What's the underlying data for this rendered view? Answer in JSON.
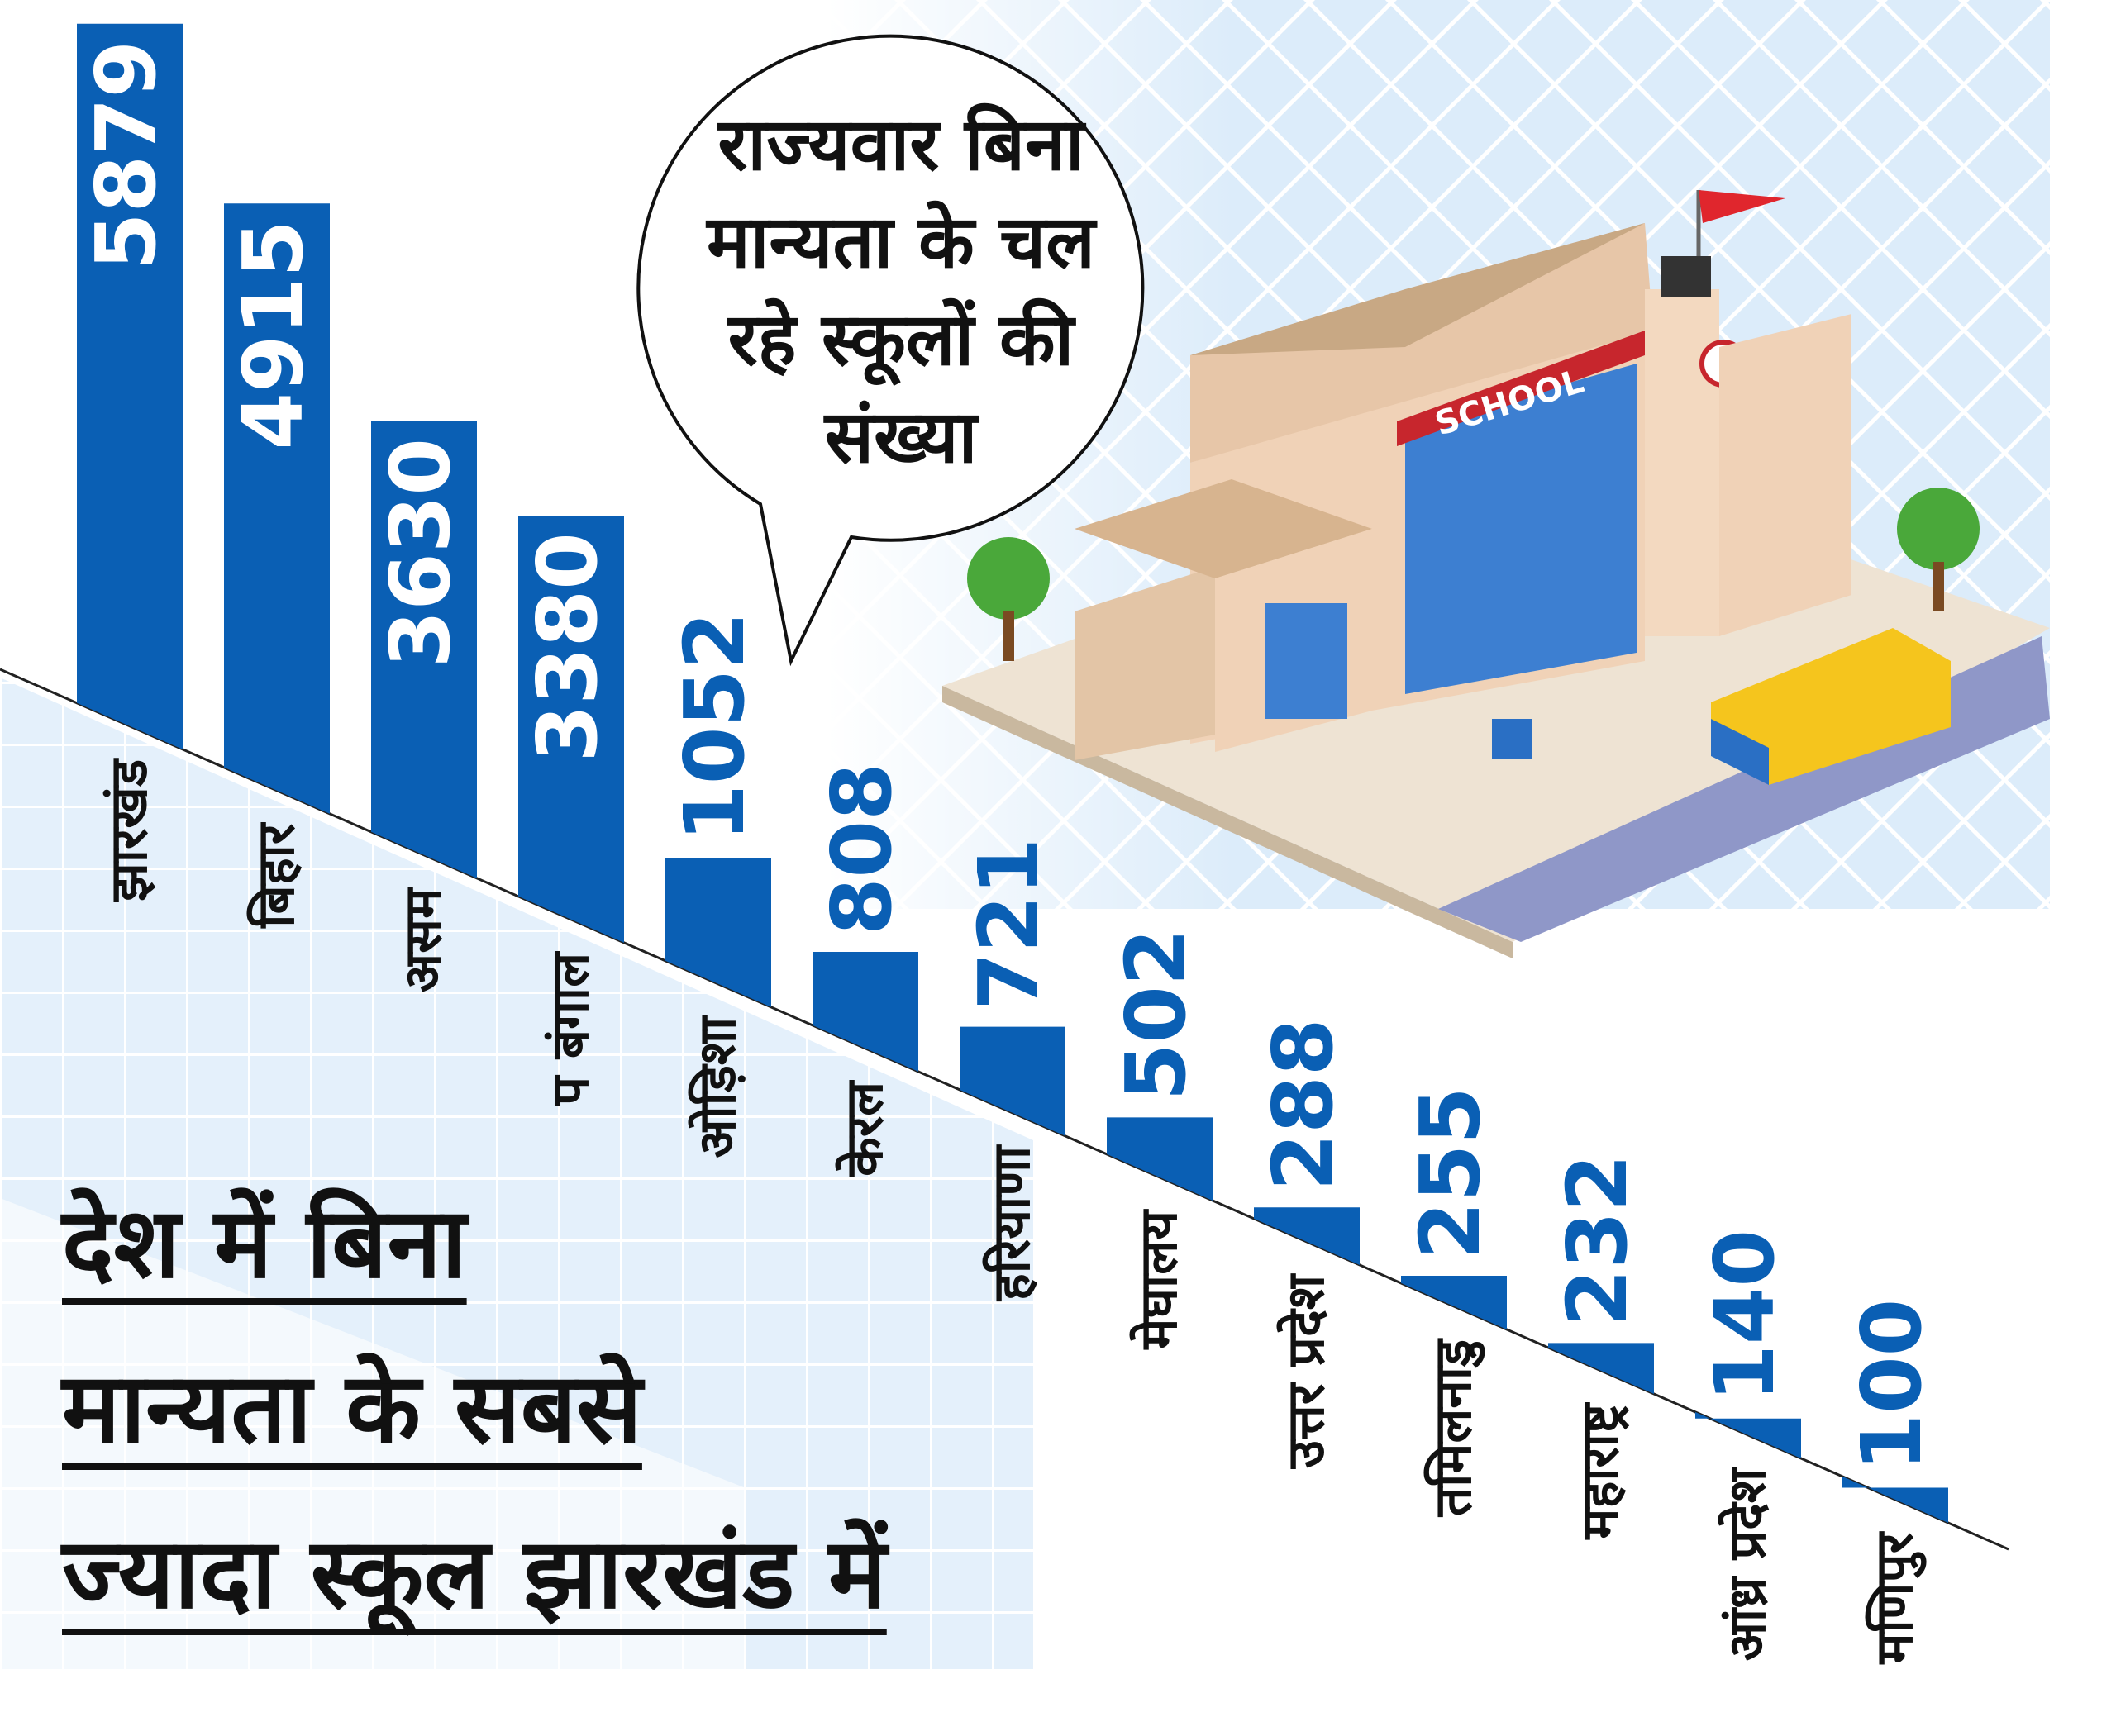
{
  "chart_data": {
    "type": "bar",
    "title": [
      "देश में बिना",
      "मान्यता के सबसे",
      "ज्यादा स्कूल झारखंड में"
    ],
    "subtitle": [
      "राज्यवार बिना",
      "मान्यता के चल",
      "रहे स्कूलों की",
      "संख्या"
    ],
    "categories": [
      "झारखंड",
      "बिहार",
      "असम",
      "प बंगाल",
      "ओड़िशा",
      "केरल",
      "हरियाणा",
      "मेघालय",
      "उत्तर प्रदेश",
      "तमिलनाडु",
      "महाराष्ट्र",
      "आंध्र प्रदेश",
      "मणिपुर"
    ],
    "values": [
      5879,
      4915,
      3630,
      3380,
      1052,
      808,
      721,
      502,
      288,
      255,
      232,
      140,
      100
    ],
    "color": "#0a5fb4",
    "illustration_text": "SCHOOL"
  }
}
